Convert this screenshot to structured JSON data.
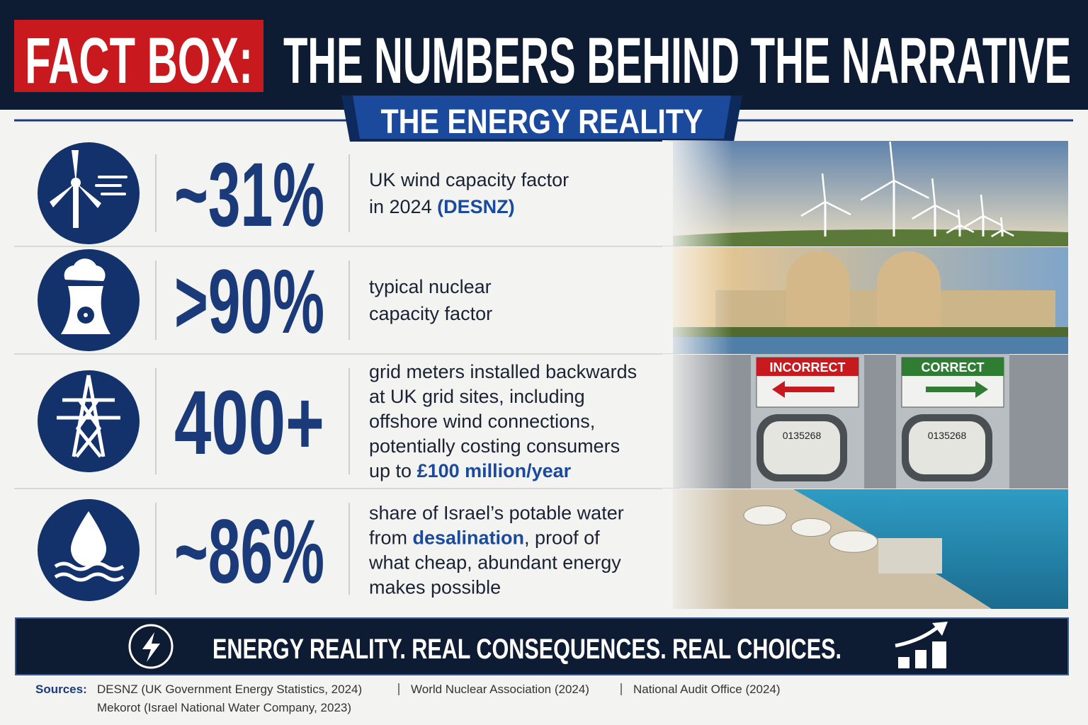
{
  "header": {
    "tag": "FACT BOX:",
    "title": "THE NUMBERS BEHIND THE NARRATIVE"
  },
  "subtitle": "THE ENERGY REALITY",
  "facts": [
    {
      "stat": "~31%",
      "lines": [
        [
          {
            "t": "UK wind capacity factor"
          }
        ],
        [
          {
            "t": "in 2024 "
          },
          {
            "t": "(DESNZ)",
            "em": true
          }
        ]
      ]
    },
    {
      "stat": ">90%",
      "lines": [
        [
          {
            "t": "typical nuclear"
          }
        ],
        [
          {
            "t": "capacity factor"
          }
        ]
      ]
    },
    {
      "stat": "400+",
      "lines": [
        [
          {
            "t": "grid meters installed backwards"
          }
        ],
        [
          {
            "t": "at UK grid sites, including"
          }
        ],
        [
          {
            "t": "offshore wind connections,"
          }
        ],
        [
          {
            "t": "potentially costing consumers"
          }
        ],
        [
          {
            "t": "up to "
          },
          {
            "t": "£100 million/year",
            "em": true
          }
        ]
      ]
    },
    {
      "stat": "~86%",
      "lines": [
        [
          {
            "t": "share of Israel’s potable water"
          }
        ],
        [
          {
            "t": "from "
          },
          {
            "t": "desalination",
            "em": true
          },
          {
            "t": ", proof of"
          }
        ],
        [
          {
            "t": "what cheap, abundant energy"
          }
        ],
        [
          {
            "t": "makes possible"
          }
        ]
      ]
    }
  ],
  "meter_labels": [
    "INCORRECT",
    "CORRECT"
  ],
  "meter_reading": "0135268",
  "banner": "ENERGY REALITY. REAL CONSEQUENCES. REAL CHOICES.",
  "sources": {
    "label": "Sources:",
    "items": [
      "DESNZ (UK Government Energy Statistics, 2024)",
      "World Nuclear Association (2024)",
      "National Audit Office (2024)",
      "Mekorot (Israel National Water Company, 2023)"
    ]
  }
}
